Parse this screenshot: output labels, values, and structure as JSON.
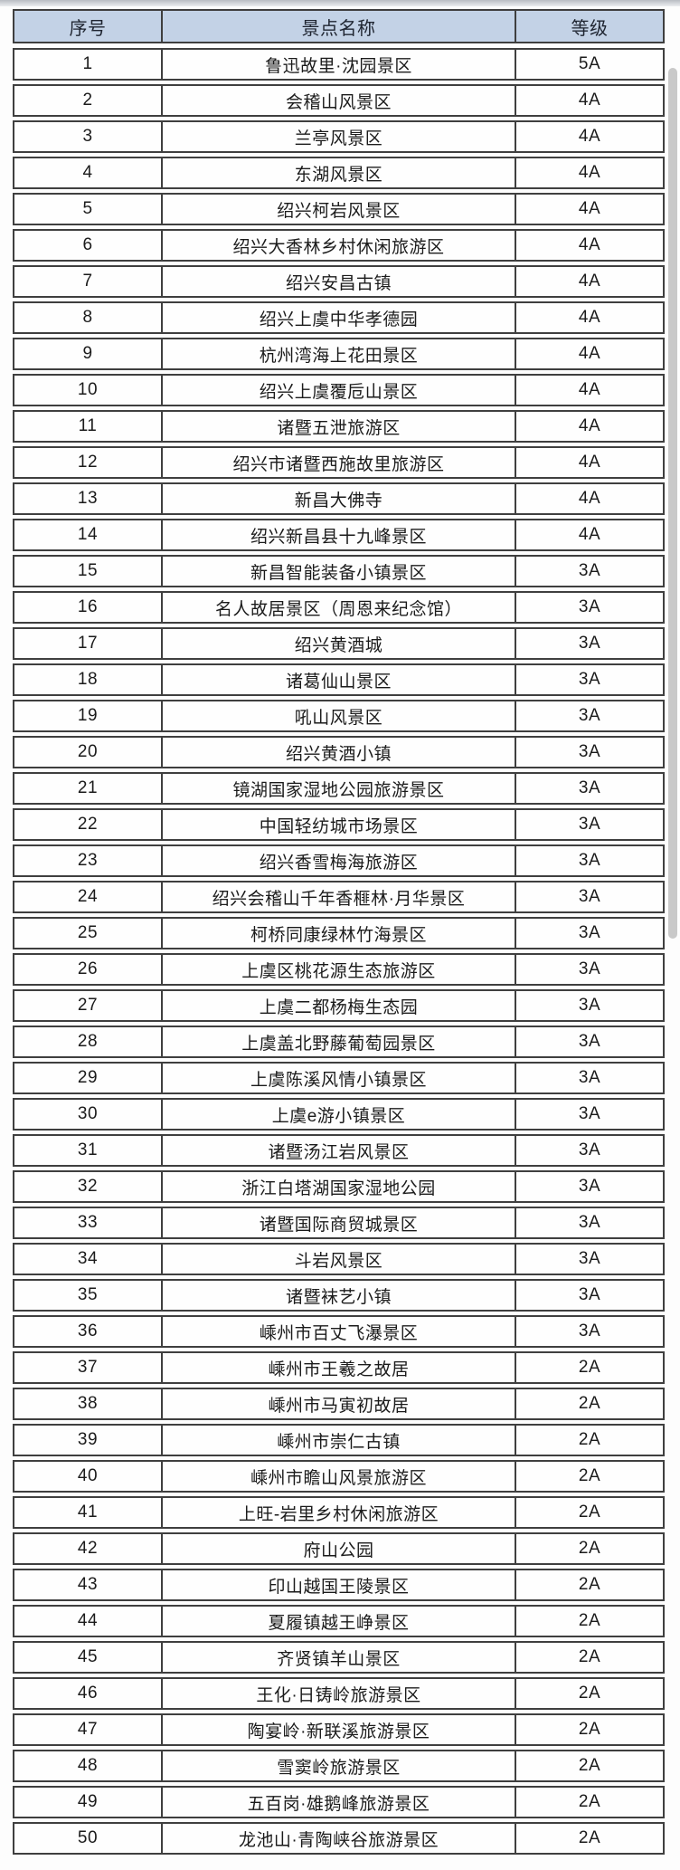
{
  "colors": {
    "header_bg": "#c3d2e6",
    "border": "#3f3f3f",
    "scrollbar": "#c9c9c9"
  },
  "table": {
    "columns": [
      {
        "key": "index",
        "label": "序号"
      },
      {
        "key": "name",
        "label": "景点名称"
      },
      {
        "key": "grade",
        "label": "等级"
      }
    ],
    "rows": [
      {
        "index": "1",
        "name": "鲁迅故里·沈园景区",
        "grade": "5A"
      },
      {
        "index": "2",
        "name": "会稽山风景区",
        "grade": "4A"
      },
      {
        "index": "3",
        "name": "兰亭风景区",
        "grade": "4A"
      },
      {
        "index": "4",
        "name": "东湖风景区",
        "grade": "4A"
      },
      {
        "index": "5",
        "name": "绍兴柯岩风景区",
        "grade": "4A"
      },
      {
        "index": "6",
        "name": "绍兴大香林乡村休闲旅游区",
        "grade": "4A"
      },
      {
        "index": "7",
        "name": "绍兴安昌古镇",
        "grade": "4A"
      },
      {
        "index": "8",
        "name": "绍兴上虞中华孝德园",
        "grade": "4A"
      },
      {
        "index": "9",
        "name": "杭州湾海上花田景区",
        "grade": "4A"
      },
      {
        "index": "10",
        "name": "绍兴上虞覆卮山景区",
        "grade": "4A"
      },
      {
        "index": "11",
        "name": "诸暨五泄旅游区",
        "grade": "4A"
      },
      {
        "index": "12",
        "name": "绍兴市诸暨西施故里旅游区",
        "grade": "4A"
      },
      {
        "index": "13",
        "name": "新昌大佛寺",
        "grade": "4A"
      },
      {
        "index": "14",
        "name": "绍兴新昌县十九峰景区",
        "grade": "4A"
      },
      {
        "index": "15",
        "name": "新昌智能装备小镇景区",
        "grade": "3A"
      },
      {
        "index": "16",
        "name": "名人故居景区（周恩来纪念馆）",
        "grade": "3A"
      },
      {
        "index": "17",
        "name": "绍兴黄酒城",
        "grade": "3A"
      },
      {
        "index": "18",
        "name": "诸葛仙山景区",
        "grade": "3A"
      },
      {
        "index": "19",
        "name": "吼山风景区",
        "grade": "3A"
      },
      {
        "index": "20",
        "name": "绍兴黄酒小镇",
        "grade": "3A"
      },
      {
        "index": "21",
        "name": "镜湖国家湿地公园旅游景区",
        "grade": "3A"
      },
      {
        "index": "22",
        "name": "中国轻纺城市场景区",
        "grade": "3A"
      },
      {
        "index": "23",
        "name": "绍兴香雪梅海旅游区",
        "grade": "3A"
      },
      {
        "index": "24",
        "name": "绍兴会稽山千年香榧林·月华景区",
        "grade": "3A"
      },
      {
        "index": "25",
        "name": "柯桥同康绿林竹海景区",
        "grade": "3A"
      },
      {
        "index": "26",
        "name": "上虞区桃花源生态旅游区",
        "grade": "3A"
      },
      {
        "index": "27",
        "name": "上虞二都杨梅生态园",
        "grade": "3A"
      },
      {
        "index": "28",
        "name": "上虞盖北野藤葡萄园景区",
        "grade": "3A"
      },
      {
        "index": "29",
        "name": "上虞陈溪风情小镇景区",
        "grade": "3A"
      },
      {
        "index": "30",
        "name": "上虞e游小镇景区",
        "grade": "3A"
      },
      {
        "index": "31",
        "name": "诸暨汤江岩风景区",
        "grade": "3A"
      },
      {
        "index": "32",
        "name": "浙江白塔湖国家湿地公园",
        "grade": "3A"
      },
      {
        "index": "33",
        "name": "诸暨国际商贸城景区",
        "grade": "3A"
      },
      {
        "index": "34",
        "name": "斗岩风景区",
        "grade": "3A"
      },
      {
        "index": "35",
        "name": "诸暨袜艺小镇",
        "grade": "3A"
      },
      {
        "index": "36",
        "name": "嵊州市百丈飞瀑景区",
        "grade": "3A"
      },
      {
        "index": "37",
        "name": "嵊州市王羲之故居",
        "grade": "2A"
      },
      {
        "index": "38",
        "name": "嵊州市马寅初故居",
        "grade": "2A"
      },
      {
        "index": "39",
        "name": "嵊州市崇仁古镇",
        "grade": "2A"
      },
      {
        "index": "40",
        "name": "嵊州市瞻山风景旅游区",
        "grade": "2A"
      },
      {
        "index": "41",
        "name": "上旺-岩里乡村休闲旅游区",
        "grade": "2A"
      },
      {
        "index": "42",
        "name": "府山公园",
        "grade": "2A"
      },
      {
        "index": "43",
        "name": "印山越国王陵景区",
        "grade": "2A"
      },
      {
        "index": "44",
        "name": "夏履镇越王峥景区",
        "grade": "2A"
      },
      {
        "index": "45",
        "name": "齐贤镇羊山景区",
        "grade": "2A"
      },
      {
        "index": "46",
        "name": "王化·日铸岭旅游景区",
        "grade": "2A"
      },
      {
        "index": "47",
        "name": "陶宴岭·新联溪旅游景区",
        "grade": "2A"
      },
      {
        "index": "48",
        "name": "雪窦岭旅游景区",
        "grade": "2A"
      },
      {
        "index": "49",
        "name": "五百岗·雄鹅峰旅游景区",
        "grade": "2A"
      },
      {
        "index": "50",
        "name": "龙池山·青陶峡谷旅游景区",
        "grade": "2A"
      }
    ]
  }
}
